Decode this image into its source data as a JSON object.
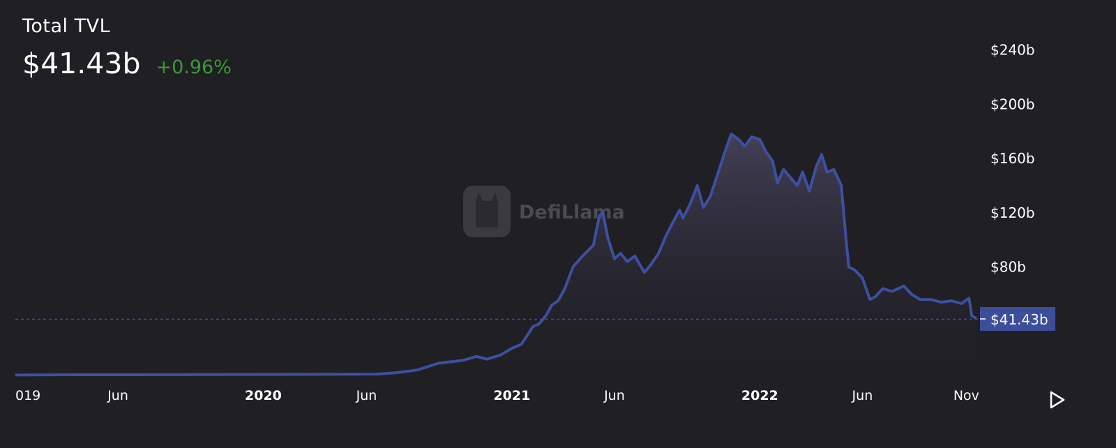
{
  "header": {
    "title": "Total TVL",
    "value": "$41.43b",
    "change": "+0.96%"
  },
  "colors": {
    "background": "#1f1f24",
    "line": "#3d50a0",
    "change_positive": "#3a9a34",
    "price_tag_bg": "#3c4e9a"
  },
  "watermark": {
    "text": "DefiLlama",
    "icon": "llama-logo-icon"
  },
  "controls": {
    "play_icon": "play-icon"
  },
  "chart_data": {
    "type": "area",
    "title": "Total TVL",
    "ylim": [
      0,
      250
    ],
    "y_unit": "billion USD",
    "y_ticks": [
      "$80b",
      "$120b",
      "$160b",
      "$200b",
      "$240b"
    ],
    "x_ticks": [
      "019",
      "Jun",
      "2020",
      "Jun",
      "2021",
      "Jun",
      "2022",
      "Jun",
      "Nov"
    ],
    "current_value_label": "$41.43b",
    "current_value": 41.43,
    "grid": false,
    "series": [
      {
        "x": [
          "2019-01-01",
          "2019-04-01",
          "2019-07-01",
          "2019-10-01",
          "2020-01-01",
          "2020-04-01",
          "2020-06-15",
          "2020-07-15",
          "2020-08-15",
          "2020-09-15",
          "2020-10-01",
          "2020-10-20",
          "2020-11-10",
          "2020-11-25",
          "2020-12-15",
          "2021-01-01",
          "2021-01-15",
          "2021-02-01",
          "2021-02-10",
          "2021-02-20",
          "2021-03-01",
          "2021-03-10",
          "2021-03-20",
          "2021-04-01",
          "2021-04-15",
          "2021-05-01",
          "2021-05-10",
          "2021-05-15",
          "2021-05-22",
          "2021-06-01",
          "2021-06-10",
          "2021-06-20",
          "2021-07-01",
          "2021-07-15",
          "2021-07-25",
          "2021-08-05",
          "2021-08-15",
          "2021-08-25",
          "2021-09-05",
          "2021-09-10",
          "2021-09-20",
          "2021-10-01",
          "2021-10-10",
          "2021-10-20",
          "2021-11-01",
          "2021-11-10",
          "2021-11-20",
          "2021-12-01",
          "2021-12-10",
          "2021-12-20",
          "2022-01-01",
          "2022-01-10",
          "2022-01-20",
          "2022-01-27",
          "2022-02-05",
          "2022-02-15",
          "2022-02-25",
          "2022-03-05",
          "2022-03-15",
          "2022-03-25",
          "2022-04-02",
          "2022-04-10",
          "2022-04-20",
          "2022-05-01",
          "2022-05-08",
          "2022-05-12",
          "2022-05-20",
          "2022-06-01",
          "2022-06-12",
          "2022-06-20",
          "2022-07-01",
          "2022-07-15",
          "2022-08-01",
          "2022-08-12",
          "2022-08-25",
          "2022-09-10",
          "2022-09-25",
          "2022-10-10",
          "2022-10-25",
          "2022-11-05",
          "2022-11-09",
          "2022-11-16"
        ],
        "y": [
          0.3,
          0.5,
          0.5,
          0.6,
          0.7,
          0.8,
          1,
          2,
          4,
          9,
          10,
          11,
          14,
          12,
          15,
          20,
          23,
          36,
          38,
          44,
          52,
          55,
          64,
          80,
          88,
          96,
          118,
          120,
          102,
          86,
          90,
          84,
          88,
          76,
          82,
          90,
          102,
          112,
          122,
          116,
          126,
          140,
          124,
          132,
          150,
          164,
          178,
          174,
          169,
          176,
          174,
          165,
          158,
          142,
          152,
          146,
          140,
          150,
          136,
          154,
          163,
          150,
          152,
          140,
          100,
          80,
          78,
          72,
          56,
          58,
          64,
          62,
          66,
          60,
          56,
          56,
          54,
          55,
          53,
          57,
          44,
          42
        ]
      }
    ]
  }
}
